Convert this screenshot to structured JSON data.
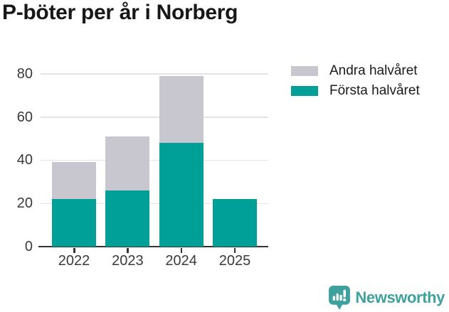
{
  "title": "P-böter per år i Norberg",
  "chart_data": {
    "type": "bar",
    "stacked": true,
    "title": "P-böter per år i Norberg",
    "categories": [
      "2022",
      "2023",
      "2024",
      "2025"
    ],
    "series": [
      {
        "name": "Första halvåret",
        "color": "#00A099",
        "values": [
          22,
          26,
          48,
          22
        ]
      },
      {
        "name": "Andra halvåret",
        "color": "#C8C6CF",
        "values": [
          17,
          25,
          31,
          0
        ]
      }
    ],
    "totals": [
      39,
      51,
      79,
      22
    ],
    "xlabel": "",
    "ylabel": "",
    "ylim": [
      0,
      80
    ],
    "yticks": [
      0,
      20,
      40,
      60,
      80
    ],
    "grid": true,
    "legend_position": "top-right"
  },
  "legend": {
    "items": [
      {
        "label": "Andra halvåret",
        "color": "#C8C6CF"
      },
      {
        "label": "Första halvåret",
        "color": "#00A099"
      }
    ]
  },
  "branding": {
    "logo_text": "Newsworthy",
    "logo_icon": "bar-chart-speech-bubble-icon",
    "logo_color": "#3FA19D"
  }
}
